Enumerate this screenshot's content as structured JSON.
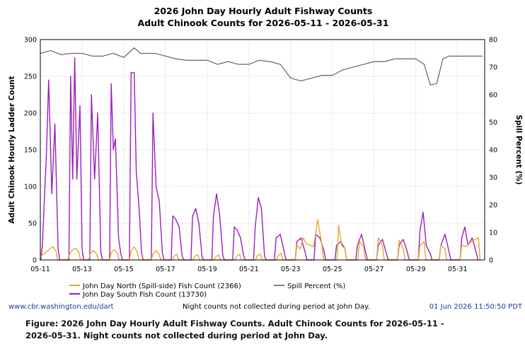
{
  "chart_data": {
    "type": "line",
    "title": "2026 John Day Hourly Adult Fishway Counts",
    "subtitle": "Adult Chinook Counts for 2026-05-11 - 2026-05-31",
    "ylabel_left": "Adult Chinook Hourly Ladder Count",
    "ylabel_right": "Spill Percent (%)",
    "xlabel": "",
    "x_ticks": [
      "05-11",
      "05-13",
      "05-15",
      "05-17",
      "05-19",
      "05-21",
      "05-23",
      "05-25",
      "05-27",
      "05-29",
      "05-31"
    ],
    "y_left_ticks": [
      "0",
      "50",
      "100",
      "150",
      "200",
      "250",
      "300"
    ],
    "y_right_ticks": [
      "0",
      "10",
      "20",
      "30",
      "40",
      "50",
      "60",
      "70",
      "80"
    ],
    "ylim_left": [
      0,
      300
    ],
    "ylim_right": [
      0,
      80
    ],
    "xlim_days": [
      0,
      21.3
    ],
    "grid": true,
    "legend_placement": "bottom",
    "series": [
      {
        "name": "John Day North (Spill-side) Fish Count (2366)",
        "axis": "left",
        "color": "#e8a72a",
        "day_values": [
          [
            0.05,
            6
          ],
          [
            0.25,
            10
          ],
          [
            0.45,
            15
          ],
          [
            0.6,
            18
          ],
          [
            0.75,
            12
          ],
          [
            1.4,
            8
          ],
          [
            1.55,
            14
          ],
          [
            1.7,
            16
          ],
          [
            1.85,
            10
          ],
          [
            2.4,
            9
          ],
          [
            2.55,
            13
          ],
          [
            2.7,
            8
          ],
          [
            3.4,
            10
          ],
          [
            3.55,
            14
          ],
          [
            3.7,
            9
          ],
          [
            4.35,
            12
          ],
          [
            4.5,
            18
          ],
          [
            4.65,
            10
          ],
          [
            5.4,
            8
          ],
          [
            5.55,
            13
          ],
          [
            5.7,
            7
          ],
          [
            6.4,
            5
          ],
          [
            6.55,
            8
          ],
          [
            7.4,
            5
          ],
          [
            7.55,
            7
          ],
          [
            8.4,
            4
          ],
          [
            8.55,
            7
          ],
          [
            9.4,
            5
          ],
          [
            9.55,
            8
          ],
          [
            10.4,
            6
          ],
          [
            10.55,
            8
          ],
          [
            11.4,
            6
          ],
          [
            11.55,
            9
          ],
          [
            12.3,
            20
          ],
          [
            12.45,
            15
          ],
          [
            12.6,
            30
          ],
          [
            12.75,
            22
          ],
          [
            13.1,
            18
          ],
          [
            13.3,
            55
          ],
          [
            13.5,
            20
          ],
          [
            14.3,
            47
          ],
          [
            14.45,
            20
          ],
          [
            14.6,
            15
          ],
          [
            15.3,
            25
          ],
          [
            15.5,
            18
          ],
          [
            16.2,
            30
          ],
          [
            16.4,
            20
          ],
          [
            17.2,
            27
          ],
          [
            17.4,
            15
          ],
          [
            18.2,
            20
          ],
          [
            18.4,
            25
          ],
          [
            19.2,
            20
          ],
          [
            19.4,
            15
          ],
          [
            20.2,
            20
          ],
          [
            20.4,
            18
          ],
          [
            20.7,
            26
          ],
          [
            21.0,
            30
          ]
        ]
      },
      {
        "name": "John Day South Fish Count (13730)",
        "axis": "left",
        "color": "#9b1fbf",
        "day_values": [
          [
            0.1,
            20
          ],
          [
            0.3,
            150
          ],
          [
            0.4,
            245
          ],
          [
            0.55,
            90
          ],
          [
            0.7,
            185
          ],
          [
            0.85,
            15
          ],
          [
            1.45,
            250
          ],
          [
            1.55,
            110
          ],
          [
            1.65,
            275
          ],
          [
            1.75,
            110
          ],
          [
            1.9,
            210
          ],
          [
            2.0,
            15
          ],
          [
            2.45,
            225
          ],
          [
            2.6,
            110
          ],
          [
            2.75,
            200
          ],
          [
            2.9,
            10
          ],
          [
            3.4,
            240
          ],
          [
            3.5,
            150
          ],
          [
            3.6,
            165
          ],
          [
            3.75,
            30
          ],
          [
            3.85,
            10
          ],
          [
            4.35,
            255
          ],
          [
            4.5,
            255
          ],
          [
            4.6,
            120
          ],
          [
            4.75,
            65
          ],
          [
            4.85,
            10
          ],
          [
            5.4,
            200
          ],
          [
            5.55,
            100
          ],
          [
            5.7,
            80
          ],
          [
            5.85,
            10
          ],
          [
            6.35,
            60
          ],
          [
            6.5,
            55
          ],
          [
            6.65,
            45
          ],
          [
            6.8,
            5
          ],
          [
            7.3,
            60
          ],
          [
            7.45,
            70
          ],
          [
            7.6,
            50
          ],
          [
            7.75,
            5
          ],
          [
            8.3,
            60
          ],
          [
            8.45,
            90
          ],
          [
            8.6,
            60
          ],
          [
            8.75,
            5
          ],
          [
            9.3,
            45
          ],
          [
            9.45,
            40
          ],
          [
            9.6,
            30
          ],
          [
            9.75,
            5
          ],
          [
            10.3,
            45
          ],
          [
            10.45,
            85
          ],
          [
            10.6,
            70
          ],
          [
            10.75,
            5
          ],
          [
            11.3,
            30
          ],
          [
            11.5,
            35
          ],
          [
            11.7,
            10
          ],
          [
            12.3,
            25
          ],
          [
            12.5,
            30
          ],
          [
            12.7,
            10
          ],
          [
            13.2,
            35
          ],
          [
            13.4,
            30
          ],
          [
            13.6,
            12
          ],
          [
            14.2,
            20
          ],
          [
            14.4,
            25
          ],
          [
            14.6,
            15
          ],
          [
            15.2,
            20
          ],
          [
            15.4,
            35
          ],
          [
            15.6,
            10
          ],
          [
            16.2,
            20
          ],
          [
            16.4,
            28
          ],
          [
            16.6,
            8
          ],
          [
            17.2,
            20
          ],
          [
            17.4,
            28
          ],
          [
            17.6,
            10
          ],
          [
            18.2,
            40
          ],
          [
            18.35,
            65
          ],
          [
            18.5,
            20
          ],
          [
            18.7,
            8
          ],
          [
            19.2,
            20
          ],
          [
            19.4,
            35
          ],
          [
            19.6,
            10
          ],
          [
            20.2,
            30
          ],
          [
            20.35,
            45
          ],
          [
            20.5,
            20
          ],
          [
            20.7,
            30
          ],
          [
            20.9,
            10
          ]
        ]
      },
      {
        "name": "Spill Percent (%)",
        "axis": "right",
        "color": "#555555",
        "day_values": [
          [
            0,
            75
          ],
          [
            0.5,
            76
          ],
          [
            1,
            74.5
          ],
          [
            1.5,
            75
          ],
          [
            2,
            75
          ],
          [
            2.5,
            74
          ],
          [
            3,
            74
          ],
          [
            3.5,
            75
          ],
          [
            4,
            73.5
          ],
          [
            4.5,
            77
          ],
          [
            4.8,
            75
          ],
          [
            5.5,
            75
          ],
          [
            6,
            74
          ],
          [
            6.5,
            73
          ],
          [
            7,
            72.5
          ],
          [
            7.5,
            72.5
          ],
          [
            8,
            72.5
          ],
          [
            8.5,
            71
          ],
          [
            9,
            72
          ],
          [
            9.5,
            71
          ],
          [
            10,
            71
          ],
          [
            10.5,
            72.5
          ],
          [
            11,
            72
          ],
          [
            11.5,
            71
          ],
          [
            12,
            66
          ],
          [
            12.5,
            65
          ],
          [
            13,
            66
          ],
          [
            13.5,
            67
          ],
          [
            14,
            67
          ],
          [
            14.5,
            69
          ],
          [
            15,
            70
          ],
          [
            15.5,
            71
          ],
          [
            16,
            72
          ],
          [
            16.5,
            72
          ],
          [
            17,
            73
          ],
          [
            17.5,
            73
          ],
          [
            18,
            73
          ],
          [
            18.4,
            71
          ],
          [
            18.7,
            63.5
          ],
          [
            19.0,
            64
          ],
          [
            19.3,
            73
          ],
          [
            19.6,
            74
          ],
          [
            20,
            74
          ],
          [
            20.5,
            74
          ],
          [
            21.2,
            74
          ]
        ]
      }
    ]
  },
  "source_label": "www.cbr.washington.edu/dart",
  "note_label": "Night counts not collected during period at John Day.",
  "timestamp_label": "01 Jun 2026 11:50:50 PDT",
  "caption": "Figure: 2026 John Day Hourly Adult Fishway Counts. Adult Chinook Counts for 2026-05-11 - 2026-05-31. Night counts not collected during period at John Day."
}
